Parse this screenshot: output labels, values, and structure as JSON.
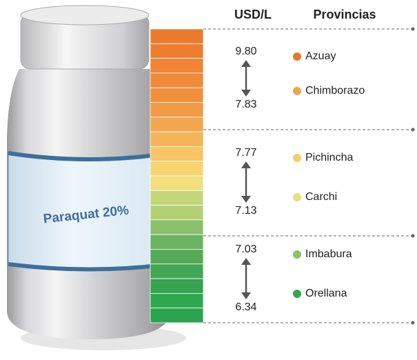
{
  "header": {
    "price": "USD/L",
    "provinces": "Provincias"
  },
  "bottle": {
    "label": "Paraquat 20%"
  },
  "groups": [
    {
      "max": "9.80",
      "min": "7.83",
      "provinces": [
        {
          "name": "Azuay",
          "color": "#e8762c"
        },
        {
          "name": "Chimborazo",
          "color": "#f0a44c"
        }
      ]
    },
    {
      "max": "7.77",
      "min": "7.13",
      "provinces": [
        {
          "name": "Pichincha",
          "color": "#f7cd6c"
        },
        {
          "name": "Carchi",
          "color": "#e3e27a"
        }
      ]
    },
    {
      "max": "7.03",
      "min": "6.34",
      "provinces": [
        {
          "name": "Imbabura",
          "color": "#8dc06b"
        },
        {
          "name": "Orellana",
          "color": "#2ea84f"
        }
      ]
    }
  ]
}
